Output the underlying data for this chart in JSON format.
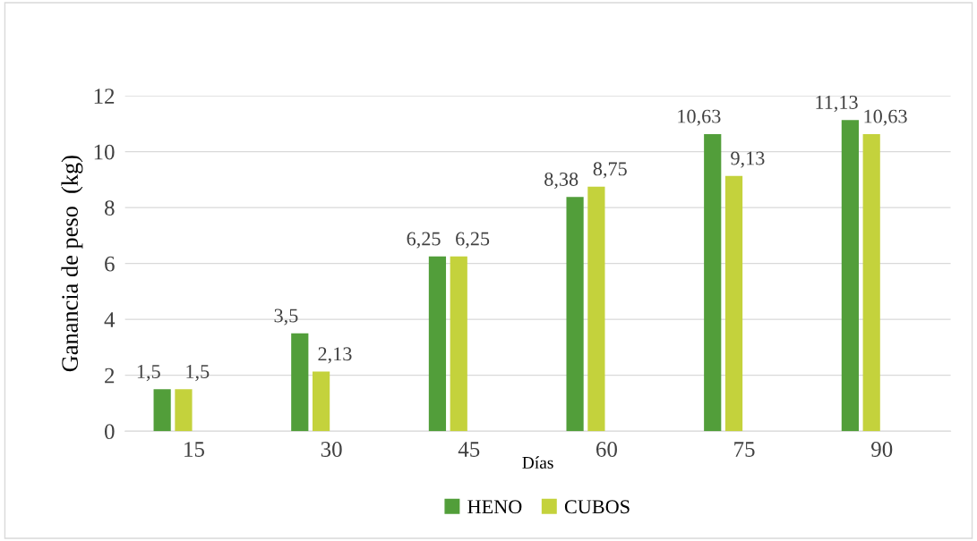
{
  "chart_data": {
    "type": "bar",
    "xlabel": "Días",
    "ylabel": "Ganancia de peso  (kg)",
    "categories": [
      "15",
      "30",
      "45",
      "60",
      "75",
      "90"
    ],
    "series": [
      {
        "name": "HENO",
        "color": "#529e3a",
        "values": [
          1.5,
          3.5,
          6.25,
          8.38,
          10.63,
          11.13
        ],
        "value_labels": [
          "1,5",
          "3,5",
          "6,25",
          "8,38",
          "10,63",
          "11,13"
        ]
      },
      {
        "name": "CUBOS",
        "color": "#c4d23c",
        "values": [
          1.5,
          2.13,
          6.25,
          8.75,
          9.13,
          10.63
        ],
        "value_labels": [
          "1,5",
          "2,13",
          "6,25",
          "8,75",
          "9,13",
          "10,63"
        ]
      }
    ],
    "ylim": [
      0,
      12
    ],
    "yticks": [
      0,
      2,
      4,
      6,
      8,
      10,
      12
    ],
    "grid": "y",
    "legend": "bottom"
  }
}
